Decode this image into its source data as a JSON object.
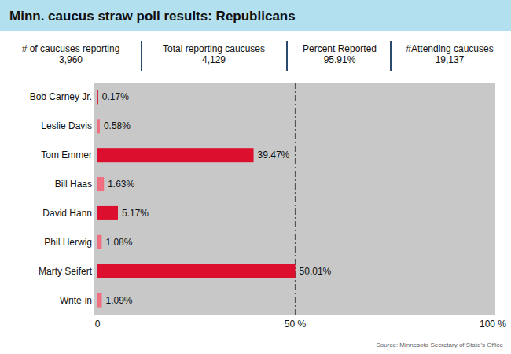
{
  "chart_data": {
    "type": "bar",
    "orientation": "horizontal",
    "title": "Minn. caucus straw poll results: Republicans",
    "categories": [
      "Bob Carney Jr.",
      "Leslie Davis",
      "Tom Emmer",
      "Bill Haas",
      "David Hann",
      "Phil Herwig",
      "Marty Seifert",
      "Write-in"
    ],
    "values": [
      0.17,
      0.58,
      39.47,
      1.63,
      5.17,
      1.08,
      50.01,
      1.09
    ],
    "value_labels": [
      "0.17%",
      "0.58%",
      "39.47%",
      "1.63%",
      "5.17%",
      "1.08%",
      "50.01%",
      "1.09%"
    ],
    "colors": [
      "#dc0f2f",
      "#ef6f80",
      "#dc0f2f",
      "#ef6f80",
      "#dc0f2f",
      "#ef6f80",
      "#dc0f2f",
      "#ef6f80"
    ],
    "data_labels": true,
    "xlim": [
      0,
      100
    ],
    "xticks": [
      0,
      {
        "value": 50,
        "label": "50 %"
      },
      {
        "value": 100,
        "label": "100 %"
      }
    ],
    "grid": true,
    "source": "Source: Minnesota Secretary of State's Office"
  },
  "stats": [
    {
      "label": "# of caucuses reporting",
      "value": "3,960"
    },
    {
      "label": "Total reporting caucuses",
      "value": "4,129"
    },
    {
      "label": "Percent Reported",
      "value": "95.91%"
    },
    {
      "label": "#Attending caucuses",
      "value": "19,137"
    }
  ]
}
